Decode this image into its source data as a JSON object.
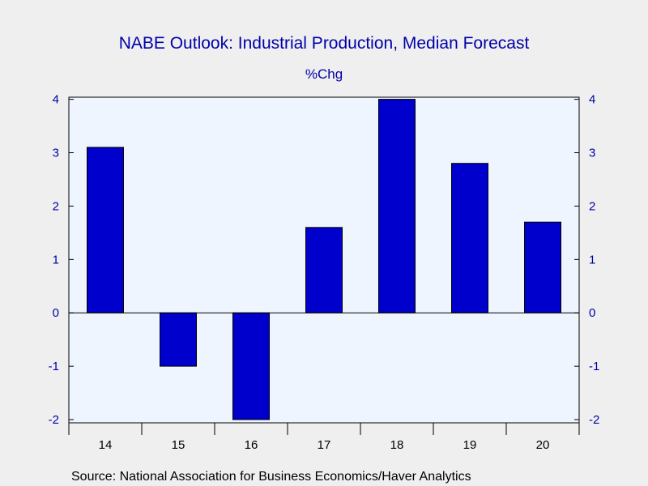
{
  "chart_data": {
    "type": "bar",
    "title": "NABE Outlook: Industrial Production, Median Forecast",
    "subtitle": "%Chg",
    "source": "Source:  National Association for Business Economics/Haver Analytics",
    "categories": [
      "14",
      "15",
      "16",
      "17",
      "18",
      "19",
      "20"
    ],
    "values": [
      3.1,
      -1.0,
      -2.0,
      1.6,
      4.0,
      2.8,
      1.7
    ],
    "ylim": [
      -2,
      4
    ],
    "yticks": [
      -2,
      -1,
      0,
      1,
      2,
      3,
      4
    ],
    "ytick_labels_left": [
      "-2",
      "-1",
      "0",
      "1",
      "2",
      "3",
      "4"
    ],
    "ytick_labels_right": [
      "-2",
      "-1",
      "0",
      "1",
      "2",
      "3",
      "4"
    ],
    "grid": false,
    "colors": {
      "bar_fill": "#0000cc",
      "bar_stroke": "#000000",
      "text": "#0000aa",
      "plot_background": "#eef5ff",
      "page_background": "#efefef",
      "axis": "#000000"
    }
  }
}
